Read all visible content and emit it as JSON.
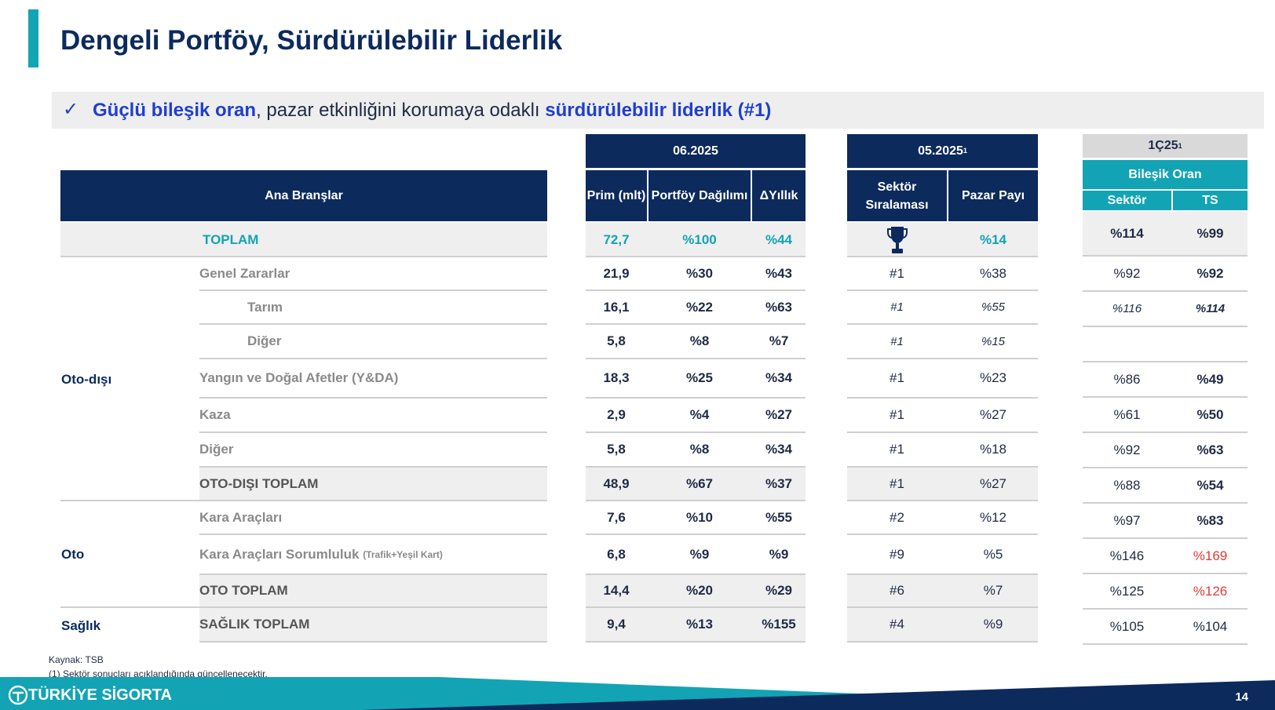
{
  "title": "Dengeli Portföy, Sürdürülebilir Liderlik",
  "callout": {
    "part1": "Güçlü bileşik oran",
    "part2": ", pazar etkinliğini korumaya odaklı ",
    "part3": "sürdürülebilir liderlik (#1)"
  },
  "headers": {
    "ana_branslar": "Ana Branşlar",
    "period1": "06.2025",
    "prim": "Prim (mlt)",
    "portfoy": "Portföy Dağılımı",
    "yillik": "ΔYıllık",
    "period2": "05.2025",
    "period2_sup": "1",
    "sektor_siralamasi": "Sektör Sıralaması",
    "pazar_payi": "Pazar Payı",
    "period3": "1Ç25",
    "period3_sup": "1",
    "bilesik_oran": "Bileşik Oran",
    "sektor": "Sektör",
    "ts": "TS"
  },
  "groups": {
    "oto_disi": "Oto-dışı",
    "oto": "Oto",
    "saglik": "Sağlık"
  },
  "rows": [
    {
      "label": "TOPLAM",
      "prim": "72,7",
      "portfoy": "%100",
      "yillik": "%44",
      "siralama": "",
      "pazar": "%14",
      "sektor": "%114",
      "ts": "%99"
    },
    {
      "label": "Genel Zararlar",
      "prim": "21,9",
      "portfoy": "%30",
      "yillik": "%43",
      "siralama": "#1",
      "pazar": "%38",
      "sektor": "%92",
      "ts": "%92"
    },
    {
      "label": "Tarım",
      "prim": "16,1",
      "portfoy": "%22",
      "yillik": "%63",
      "siralama": "#1",
      "pazar": "%55",
      "sektor": "%116",
      "ts": "%114"
    },
    {
      "label": "Diğer",
      "prim": "5,8",
      "portfoy": "%8",
      "yillik": "%7",
      "siralama": "#1",
      "pazar": "%15",
      "sektor": "",
      "ts": ""
    },
    {
      "label": "Yangın ve Doğal Afetler (Y&DA)",
      "prim": "18,3",
      "portfoy": "%25",
      "yillik": "%34",
      "siralama": "#1",
      "pazar": "%23",
      "sektor": "%86",
      "ts": "%49"
    },
    {
      "label": "Kaza",
      "prim": "2,9",
      "portfoy": "%4",
      "yillik": "%27",
      "siralama": "#1",
      "pazar": "%27",
      "sektor": "%61",
      "ts": "%50"
    },
    {
      "label": "Diğer",
      "prim": "5,8",
      "portfoy": "%8",
      "yillik": "%34",
      "siralama": "#1",
      "pazar": "%18",
      "sektor": "%92",
      "ts": "%63"
    },
    {
      "label": "OTO-DIŞI TOPLAM",
      "prim": "48,9",
      "portfoy": "%67",
      "yillik": "%37",
      "siralama": "#1",
      "pazar": "%27",
      "sektor": "%88",
      "ts": "%54"
    },
    {
      "label": "Kara Araçları",
      "prim": "7,6",
      "portfoy": "%10",
      "yillik": "%55",
      "siralama": "#2",
      "pazar": "%12",
      "sektor": "%97",
      "ts": "%83"
    },
    {
      "label": "Kara Araçları Sorumluluk",
      "label_note": "(Trafik+Yeşil Kart)",
      "prim": "6,8",
      "portfoy": "%9",
      "yillik": "%9",
      "siralama": "#9",
      "pazar": "%5",
      "sektor": "%146",
      "ts": "%169"
    },
    {
      "label": "OTO TOPLAM",
      "prim": "14,4",
      "portfoy": "%20",
      "yillik": "%29",
      "siralama": "#6",
      "pazar": "%7",
      "sektor": "%125",
      "ts": "%126"
    },
    {
      "label": "SAĞLIK TOPLAM",
      "prim": "9,4",
      "portfoy": "%13",
      "yillik": "%155",
      "siralama": "#4",
      "pazar": "%9",
      "sektor": "%105",
      "ts": "%104"
    }
  ],
  "colors": {
    "navy": "#0c2a5c",
    "teal": "#12a4b4",
    "red": "#e53935"
  },
  "icons": {
    "trophy": "trophy-icon",
    "check": "checkmark-icon"
  },
  "footnotes": [
    "Kaynak: TSB",
    "(1) Sektör sonuçları açıklandığında güncellenecektir."
  ],
  "footer": {
    "logo": "TÜRKİYE SİGORTA",
    "page": "14"
  }
}
